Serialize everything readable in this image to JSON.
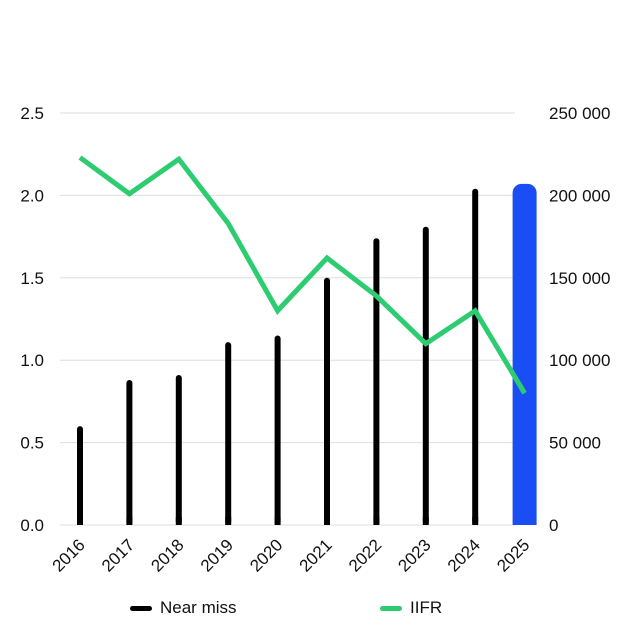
{
  "chart_data": {
    "type": "bar",
    "categories": [
      "2016",
      "2017",
      "2018",
      "2019",
      "2020",
      "2021",
      "2022",
      "2023",
      "2024",
      "2025"
    ],
    "series": [
      {
        "name": "Near miss",
        "type": "bar",
        "axis": "right",
        "color": "#000000",
        "highlight_color": "#1a4ef5",
        "highlight_category": "2025",
        "values": [
          60000,
          88000,
          91000,
          111000,
          115000,
          150000,
          174000,
          181000,
          204000,
          207000
        ]
      },
      {
        "name": "IIFR",
        "type": "line",
        "axis": "left",
        "color": "#2ecc71",
        "values": [
          2.23,
          2.01,
          2.22,
          1.83,
          1.3,
          1.62,
          1.39,
          1.1,
          1.3,
          0.8
        ]
      }
    ],
    "left_axis": {
      "ylim": [
        0,
        2.5
      ],
      "ticks": [
        "0.0",
        "0.5",
        "1.0",
        "1.5",
        "2.0",
        "2.5"
      ]
    },
    "right_axis": {
      "ylim": [
        0,
        250000
      ],
      "ticks": [
        "0",
        "50 000",
        "100 000",
        "150 000",
        "200 000",
        "250 000"
      ]
    },
    "grid": true,
    "legend_position": "bottom"
  },
  "legend": {
    "items": [
      {
        "label": "Near miss",
        "color": "#000000"
      },
      {
        "label": "IIFR",
        "color": "#2ecc71"
      }
    ]
  }
}
